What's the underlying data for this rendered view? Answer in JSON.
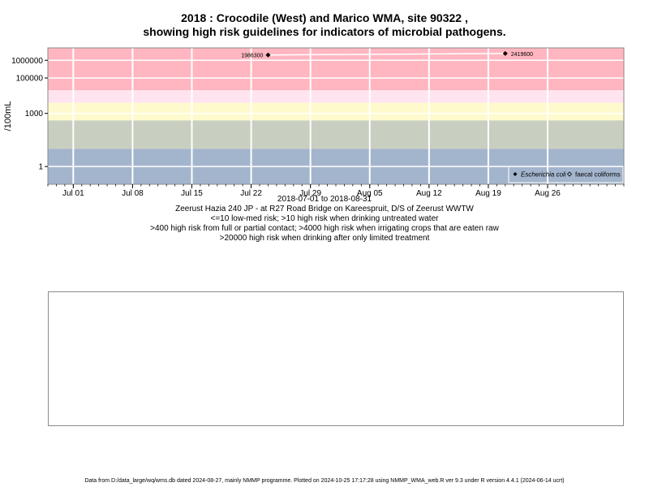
{
  "chart_data": {
    "type": "scatter",
    "title_line1": "2018 : Crocodile (West) and Marico WMA, site 90322 ,",
    "title_line2": "showing high risk guidelines for indicators of microbial pathogens.",
    "ylabel": "/100mL",
    "y_scale": "log",
    "y_ticks": [
      "1000000",
      "100000",
      "1000",
      "1"
    ],
    "y_tick_values": [
      1000000,
      100000,
      1000,
      1
    ],
    "ylim": [
      0.1,
      5000000
    ],
    "x_ticks": [
      "Jul 01",
      "Jul 08",
      "Jul 15",
      "Jul 22",
      "Jul 29",
      "Aug 05",
      "Aug 12",
      "Aug 19",
      "Aug 26"
    ],
    "x_tick_dates": [
      "2018-07-01",
      "2018-07-08",
      "2018-07-15",
      "2018-07-22",
      "2018-07-29",
      "2018-08-05",
      "2018-08-12",
      "2018-08-19",
      "2018-08-26"
    ],
    "xlim": [
      "2018-06-28",
      "2018-09-04"
    ],
    "bands": [
      {
        "from": 20000,
        "to": 5000000,
        "color": "#ffb6c1"
      },
      {
        "from": 4000,
        "to": 20000,
        "color": "#ffe4f0"
      },
      {
        "from": 400,
        "to": 4000,
        "color": "#fffacd"
      },
      {
        "from": 10,
        "to": 400,
        "color": "#c8cfc0"
      },
      {
        "from": 0.1,
        "to": 10,
        "color": "#a3b5cd"
      }
    ],
    "series": [
      {
        "name": "Escherichia coli",
        "marker": "filled-diamond",
        "color": "#000000",
        "points": [
          {
            "x": "2018-07-24",
            "y": 1986300,
            "label": "1986300"
          },
          {
            "x": "2018-08-21",
            "y": 2419600,
            "label": "2419600"
          }
        ]
      },
      {
        "name": "faecal coliforms",
        "marker": "open-diamond",
        "color": "#000000",
        "points": []
      }
    ],
    "legend_position": "bottom-right",
    "grid": true
  },
  "captions": {
    "date_range": "2018-07-01 to 2018-08-31",
    "site": "Zeerust Hazia 240 JP - at R27 Road Bridge on Kareespruit, D/S of Zeerust WWTW",
    "risk1": "<=10 low-med risk; >10 high risk when drinking untreated water",
    "risk2": ">400 high risk from full or partial contact; >4000 high risk when irrigating crops that are eaten raw",
    "risk3": ">20000 high risk when drinking after only limited treatment"
  },
  "footer": "Data from D:/data_large/wq/wms.db dated 2024-08-27, mainly NMMP programme. Plotted on 2024-10-25 17:17:28 using NMMP_WMA_web.R ver 9.3 under R version 4.4.1 (2024-06-14 ucrt)"
}
